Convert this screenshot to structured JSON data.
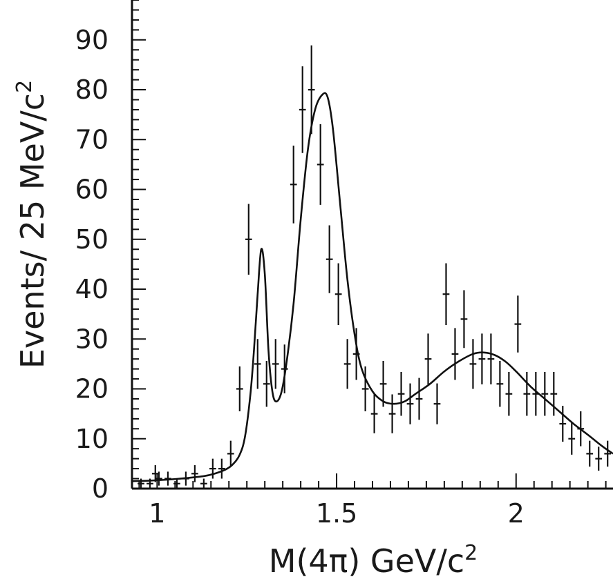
{
  "chart_data": {
    "type": "scatter",
    "title": "",
    "xlabel": "M(4π) GeV/c",
    "xlabel_sup": "2",
    "ylabel": "Events/ 25 MeV/c",
    "ylabel_sup": "2",
    "xlim": [
      0.93,
      2.27
    ],
    "ylim": [
      0,
      98
    ],
    "x_ticks": [
      1,
      1.5,
      2
    ],
    "x_tick_labels": [
      "1",
      "1.5",
      "2"
    ],
    "y_ticks": [
      0,
      10,
      20,
      30,
      40,
      50,
      60,
      70,
      80,
      90
    ],
    "y_tick_labels": [
      "0",
      "10",
      "20",
      "30",
      "40",
      "50",
      "60",
      "70",
      "80",
      "90"
    ],
    "grid": false,
    "series": [
      {
        "kind": "data-with-errors",
        "x": [
          0.955,
          0.98,
          0.995,
          1.005,
          1.03,
          1.055,
          1.08,
          1.105,
          1.13,
          1.155,
          1.18,
          1.205,
          1.23,
          1.255,
          1.28,
          1.305,
          1.33,
          1.355,
          1.38,
          1.405,
          1.43,
          1.455,
          1.48,
          1.505,
          1.53,
          1.555,
          1.58,
          1.605,
          1.63,
          1.655,
          1.68,
          1.705,
          1.73,
          1.755,
          1.78,
          1.805,
          1.83,
          1.855,
          1.88,
          1.905,
          1.93,
          1.955,
          1.98,
          2.005,
          2.03,
          2.055,
          2.08,
          2.105,
          2.13,
          2.155,
          2.18,
          2.205,
          2.23,
          2.255
        ],
        "y": [
          1,
          1,
          3,
          2,
          2,
          1,
          2,
          3,
          1,
          4,
          4,
          7,
          20,
          50,
          25,
          21,
          25,
          24,
          61,
          76,
          80,
          65,
          46,
          39,
          25,
          27,
          20,
          15,
          21,
          15,
          19,
          17,
          18,
          26,
          17,
          39,
          27,
          34,
          25,
          26,
          26,
          21,
          19,
          33,
          19,
          19,
          19,
          19,
          13,
          10,
          12,
          7,
          6,
          7
        ],
        "err": [
          1,
          1,
          1.7,
          1.4,
          1.4,
          1,
          1.4,
          1.7,
          1,
          2,
          2,
          2.6,
          4.5,
          7.1,
          5,
          4.6,
          5,
          4.9,
          7.8,
          8.7,
          8.9,
          8.1,
          6.8,
          6.2,
          5,
          5.2,
          4.5,
          3.9,
          4.6,
          3.9,
          4.4,
          4.1,
          4.2,
          5.1,
          4.1,
          6.2,
          5.2,
          5.8,
          5,
          5.1,
          5.1,
          4.6,
          4.4,
          5.7,
          4.4,
          4.4,
          4.4,
          4.4,
          3.6,
          3.2,
          3.5,
          2.6,
          2.4,
          2.6
        ],
        "half_width": 0.0125
      },
      {
        "kind": "fit-curve",
        "x": [
          0.93,
          0.98,
          1.03,
          1.08,
          1.13,
          1.16,
          1.19,
          1.21,
          1.23,
          1.245,
          1.26,
          1.27,
          1.28,
          1.29,
          1.3,
          1.31,
          1.32,
          1.33,
          1.345,
          1.36,
          1.38,
          1.4,
          1.42,
          1.44,
          1.46,
          1.475,
          1.49,
          1.51,
          1.53,
          1.55,
          1.57,
          1.6,
          1.63,
          1.66,
          1.69,
          1.72,
          1.76,
          1.8,
          1.84,
          1.88,
          1.91,
          1.94,
          1.97,
          2.0,
          2.04,
          2.08,
          2.12,
          2.16,
          2.2,
          2.24,
          2.27
        ],
        "y": [
          1.5,
          1.6,
          1.8,
          2.1,
          2.5,
          3.0,
          3.8,
          4.8,
          6.8,
          10.5,
          19,
          28,
          39,
          48,
          43,
          28,
          20,
          17.5,
          19,
          25,
          37,
          54,
          68,
          76,
          79,
          78.5,
          72,
          57,
          42,
          31,
          24,
          19.5,
          17.5,
          17,
          17.5,
          19,
          21,
          23.5,
          25.5,
          27,
          27.3,
          26.8,
          25.5,
          23.5,
          20.5,
          18,
          15.5,
          13,
          10.8,
          8.5,
          7
        ]
      }
    ]
  }
}
